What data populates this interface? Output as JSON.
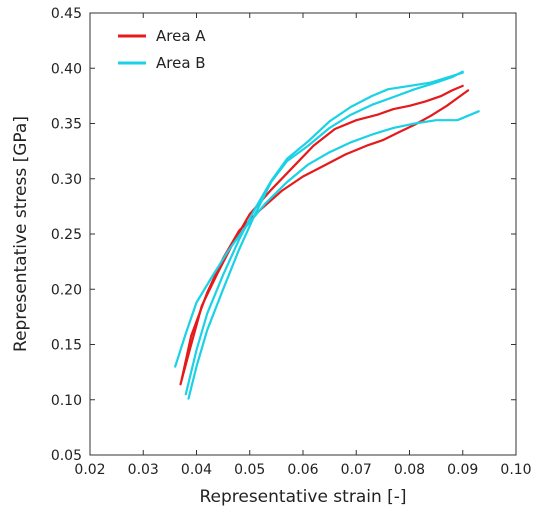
{
  "chart_data": {
    "type": "line",
    "title": "",
    "xlabel": "Representative strain [-]",
    "ylabel": "Representative stress [GPa]",
    "xlim": [
      0.02,
      0.1
    ],
    "ylim": [
      0.05,
      0.45
    ],
    "x_ticks": [
      0.02,
      0.03,
      0.04,
      0.05,
      0.06,
      0.07,
      0.08,
      0.09,
      0.1
    ],
    "y_ticks": [
      0.05,
      0.1,
      0.15,
      0.2,
      0.25,
      0.3,
      0.35,
      0.4,
      0.45
    ],
    "x_tick_labels": [
      "0.02",
      "0.03",
      "0.04",
      "0.05",
      "0.06",
      "0.07",
      "0.08",
      "0.09",
      "0.10"
    ],
    "y_tick_labels": [
      "0.05",
      "0.10",
      "0.15",
      "0.20",
      "0.25",
      "0.30",
      "0.35",
      "0.40",
      "0.45"
    ],
    "grid": false,
    "legend": {
      "position": "top-left"
    },
    "colors": {
      "Area A": "#e41a1c",
      "Area B": "#1ad1e6"
    },
    "series": [
      {
        "name": "Area A",
        "color": "#e41a1c",
        "curves": [
          [
            [
              0.037,
              0.114
            ],
            [
              0.039,
              0.15
            ],
            [
              0.041,
              0.185
            ],
            [
              0.044,
              0.215
            ],
            [
              0.047,
              0.243
            ],
            [
              0.05,
              0.268
            ],
            [
              0.054,
              0.29
            ],
            [
              0.058,
              0.31
            ],
            [
              0.062,
              0.33
            ],
            [
              0.066,
              0.345
            ],
            [
              0.07,
              0.353
            ],
            [
              0.074,
              0.358
            ],
            [
              0.077,
              0.363
            ],
            [
              0.08,
              0.366
            ],
            [
              0.083,
              0.37
            ],
            [
              0.086,
              0.375
            ],
            [
              0.088,
              0.38
            ],
            [
              0.09,
              0.384
            ]
          ],
          [
            [
              0.0372,
              0.118
            ],
            [
              0.039,
              0.158
            ],
            [
              0.042,
              0.197
            ],
            [
              0.045,
              0.228
            ],
            [
              0.048,
              0.253
            ],
            [
              0.052,
              0.272
            ],
            [
              0.056,
              0.289
            ],
            [
              0.06,
              0.302
            ],
            [
              0.064,
              0.312
            ],
            [
              0.068,
              0.322
            ],
            [
              0.072,
              0.33
            ],
            [
              0.075,
              0.335
            ],
            [
              0.078,
              0.342
            ],
            [
              0.081,
              0.349
            ],
            [
              0.084,
              0.357
            ],
            [
              0.087,
              0.366
            ],
            [
              0.089,
              0.373
            ],
            [
              0.091,
              0.38
            ]
          ]
        ]
      },
      {
        "name": "Area B",
        "color": "#1ad1e6",
        "curves": [
          [
            [
              0.036,
              0.13
            ],
            [
              0.038,
              0.16
            ],
            [
              0.04,
              0.188
            ],
            [
              0.043,
              0.212
            ],
            [
              0.046,
              0.235
            ],
            [
              0.049,
              0.255
            ],
            [
              0.053,
              0.278
            ],
            [
              0.057,
              0.297
            ],
            [
              0.061,
              0.313
            ],
            [
              0.065,
              0.324
            ],
            [
              0.069,
              0.333
            ],
            [
              0.073,
              0.34
            ],
            [
              0.077,
              0.346
            ],
            [
              0.081,
              0.35
            ],
            [
              0.085,
              0.353
            ],
            [
              0.089,
              0.353
            ],
            [
              0.093,
              0.361
            ]
          ],
          [
            [
              0.0385,
              0.101
            ],
            [
              0.04,
              0.13
            ],
            [
              0.042,
              0.163
            ],
            [
              0.045,
              0.2
            ],
            [
              0.048,
              0.236
            ],
            [
              0.051,
              0.268
            ],
            [
              0.054,
              0.297
            ],
            [
              0.057,
              0.316
            ],
            [
              0.061,
              0.33
            ],
            [
              0.065,
              0.346
            ],
            [
              0.069,
              0.358
            ],
            [
              0.073,
              0.367
            ],
            [
              0.077,
              0.374
            ],
            [
              0.081,
              0.381
            ],
            [
              0.085,
              0.387
            ],
            [
              0.088,
              0.392
            ],
            [
              0.09,
              0.397
            ]
          ],
          [
            [
              0.038,
              0.105
            ],
            [
              0.04,
              0.145
            ],
            [
              0.042,
              0.178
            ],
            [
              0.045,
              0.213
            ],
            [
              0.048,
              0.245
            ],
            [
              0.051,
              0.273
            ],
            [
              0.054,
              0.298
            ],
            [
              0.057,
              0.318
            ],
            [
              0.061,
              0.334
            ],
            [
              0.065,
              0.352
            ],
            [
              0.069,
              0.365
            ],
            [
              0.073,
              0.375
            ],
            [
              0.076,
              0.381
            ],
            [
              0.08,
              0.384
            ],
            [
              0.084,
              0.387
            ],
            [
              0.088,
              0.393
            ],
            [
              0.09,
              0.396
            ]
          ]
        ]
      }
    ]
  }
}
